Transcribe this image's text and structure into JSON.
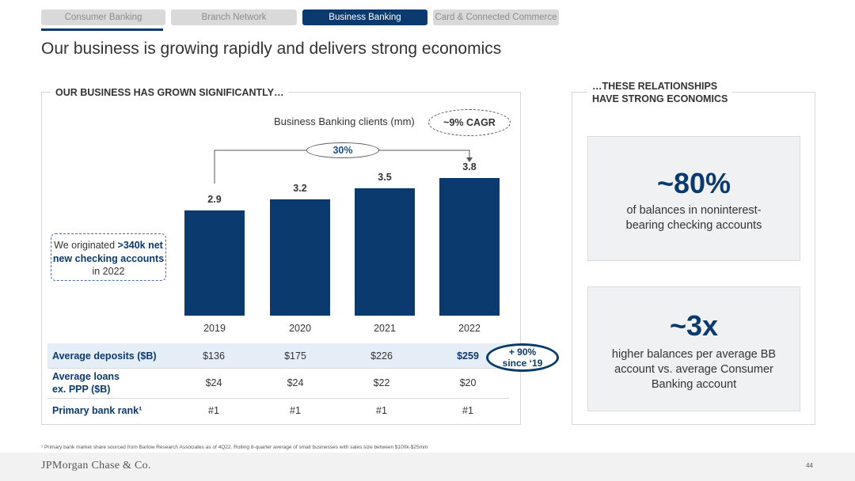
{
  "tabs": [
    {
      "label": "Consumer Banking",
      "active": false
    },
    {
      "label": "Branch Network",
      "active": false
    },
    {
      "label": "Business Banking",
      "active": true
    },
    {
      "label": "Card & Connected Commerce",
      "active": false
    }
  ],
  "title": "Our business is growing rapidly and delivers strong economics",
  "left_section": {
    "heading": "OUR BUSINESS HAS GROWN SIGNIFICANTLY…",
    "cagr": "~9% CAGR",
    "growth": "30%",
    "callout": {
      "pre": "We originated ",
      "bold1": ">340k net new checking accounts",
      "post": " in 2022"
    }
  },
  "chart_data": {
    "type": "bar",
    "title": "Business Banking clients (mm)",
    "categories": [
      "2019",
      "2020",
      "2021",
      "2022"
    ],
    "values": [
      2.9,
      3.2,
      3.5,
      3.8
    ],
    "value_labels": [
      "2.9",
      "3.2",
      "3.5",
      "3.8"
    ],
    "color": "#0b3a6e"
  },
  "table": [
    {
      "label": "Average deposits ($B)",
      "values": [
        "$136",
        "$175",
        "$226",
        "$259"
      ],
      "highlight": true
    },
    {
      "label": "Average loans ex. PPP ($B)",
      "values": [
        "$24",
        "$24",
        "$22",
        "$20"
      ],
      "highlight": false
    },
    {
      "label": "Primary bank rank¹",
      "values": [
        "#1",
        "#1",
        "#1",
        "#1"
      ],
      "highlight": false
    }
  ],
  "since_badge": {
    "line1": "+ 90%",
    "line2": "since ‘19"
  },
  "right_section": {
    "heading_line1": "…THESE RELATIONSHIPS",
    "heading_line2": "HAVE STRONG ECONOMICS",
    "stats": [
      {
        "big": "~80%",
        "desc": "of balances in noninterest-bearing checking accounts"
      },
      {
        "big": "~3x",
        "desc": "higher balances per average BB account vs. average Consumer Banking account"
      }
    ]
  },
  "footnote": "¹ Primary bank market share sourced from Barlow Research Associates as of 4Q22. Rolling 8-quarter average of small businesses with sales size between $100k-$25mm",
  "logo": "JPMorgan Chase & Co.",
  "page_number": "44",
  "colors": {
    "brand": "#0b3a6e",
    "highlight_row": "#e5edf7"
  }
}
